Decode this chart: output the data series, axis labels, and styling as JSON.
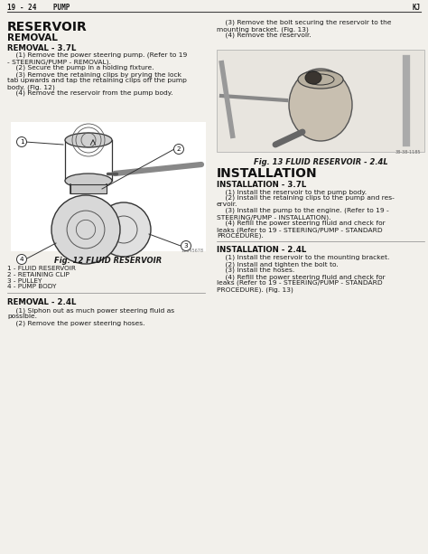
{
  "page_header_left": "19 - 24    PUMP",
  "page_header_right": "KJ",
  "bg_color": "#f2f0eb",
  "text_color": "#1a1a1a",
  "title1": "RESERVOIR",
  "section1": "REMOVAL",
  "subsection1": "REMOVAL - 3.7L",
  "removal_37_text": [
    "    (1) Remove the power steering pump. (Refer to 19",
    "- STEERING/PUMP - REMOVAL).",
    "    (2) Secure the pump in a holding fixture.",
    "    (3) Remove the retaining clips by prying the lock",
    "tab upwards and tap the retaining clips off the pump",
    "body. (Fig. 12)",
    "    (4) Remove the reservoir from the pump body."
  ],
  "fig12_caption": "Fig. 12 FLUID RESERVOIR",
  "fig12_labels": [
    "1 - FLUID RESERVOIR",
    "2 - RETAINING CLIP",
    "3 - PULLEY",
    "4 - PUMP BODY"
  ],
  "subsection2": "REMOVAL - 2.4L",
  "removal_24_text": [
    "    (1) Siphon out as much power steering fluid as",
    "possible.",
    "    (2) Remove the power steering hoses."
  ],
  "right_top_text": [
    "    (3) Remove the bolt securing the reservoir to the",
    "mounting bracket. (Fig. 13)",
    "    (4) Remove the reservoir."
  ],
  "fig13_caption": "Fig. 13 FLUID RESERVOIR - 2.4L",
  "title2": "INSTALLATION",
  "subsection3": "INSTALLATION - 3.7L",
  "install_37_text": [
    "    (1) Install the reservoir to the pump body.",
    "    (2) Install the retaining clips to the pump and res-",
    "ervoir.",
    "    (3) Install the pump to the engine. (Refer to 19 -",
    "STEERING/PUMP - INSTALLATION).",
    "    (4) Refill the power steering fluid and check for",
    "leaks (Refer to 19 - STEERING/PUMP - STANDARD",
    "PROCEDURE)."
  ],
  "subsection4": "INSTALLATION - 2.4L",
  "install_24_text": [
    "    (1) Install the reservoir to the mounting bracket.",
    "    (2) Install and tighten the bolt to.",
    "    (3) Install the hoses.",
    "    (4) Refill the power steering fluid and check for",
    "leaks (Refer to 19 - STEERING/PUMP - STANDARD",
    "PROCEDURE). (Fig. 13)"
  ]
}
